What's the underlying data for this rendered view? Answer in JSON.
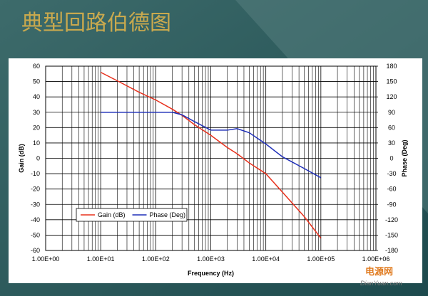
{
  "slide_title": "典型回路伯德图",
  "watermark": {
    "brand": "电源网",
    "site": "DianYuan.com"
  },
  "chart_data": {
    "type": "line",
    "x_label": "Frequency (Hz)",
    "y_label": "Gain (dB)",
    "y2_label": "Phase (Deg)",
    "xscale": "log",
    "grid": true,
    "minor_grid": true,
    "legend": "lower left",
    "x": [
      10,
      20,
      50,
      100,
      200,
      300,
      500,
      1000,
      2000,
      3000,
      5000,
      10000,
      20000,
      50000,
      100000
    ],
    "series": [
      {
        "name": "Gain (dB)",
        "color": "#e8301c",
        "values": [
          56,
          50.5,
          43,
          38,
          32,
          28,
          22,
          15,
          7,
          3,
          -3,
          -10,
          -22,
          -38,
          -52
        ]
      },
      {
        "name": "Phase (Deg)",
        "color": "#1f2fb8",
        "axis": "y2",
        "values": [
          90,
          90,
          90,
          90,
          90,
          85,
          72,
          55,
          55,
          58,
          50,
          28,
          3,
          -20,
          -38
        ]
      }
    ],
    "xlim": [
      1,
      1000000
    ],
    "xticks": [
      {
        "value": 1,
        "label": "1.00E+00"
      },
      {
        "value": 10,
        "label": "1.00E+01"
      },
      {
        "value": 100,
        "label": "1.00E+02"
      },
      {
        "value": 1000,
        "label": "1.00E+03"
      },
      {
        "value": 10000,
        "label": "1.00E+04"
      },
      {
        "value": 100000,
        "label": "1.00E+05"
      },
      {
        "value": 1000000,
        "label": "1.00E+06"
      }
    ],
    "ylim": [
      -60,
      60
    ],
    "yticks": [
      -60,
      -50,
      -40,
      -30,
      -20,
      -10,
      0,
      10,
      20,
      30,
      40,
      50,
      60
    ],
    "y2lim": [
      -180,
      180
    ],
    "y2ticks": [
      -180,
      -150,
      -120,
      -90,
      -60,
      -30,
      0,
      30,
      60,
      90,
      120,
      150,
      180
    ]
  }
}
